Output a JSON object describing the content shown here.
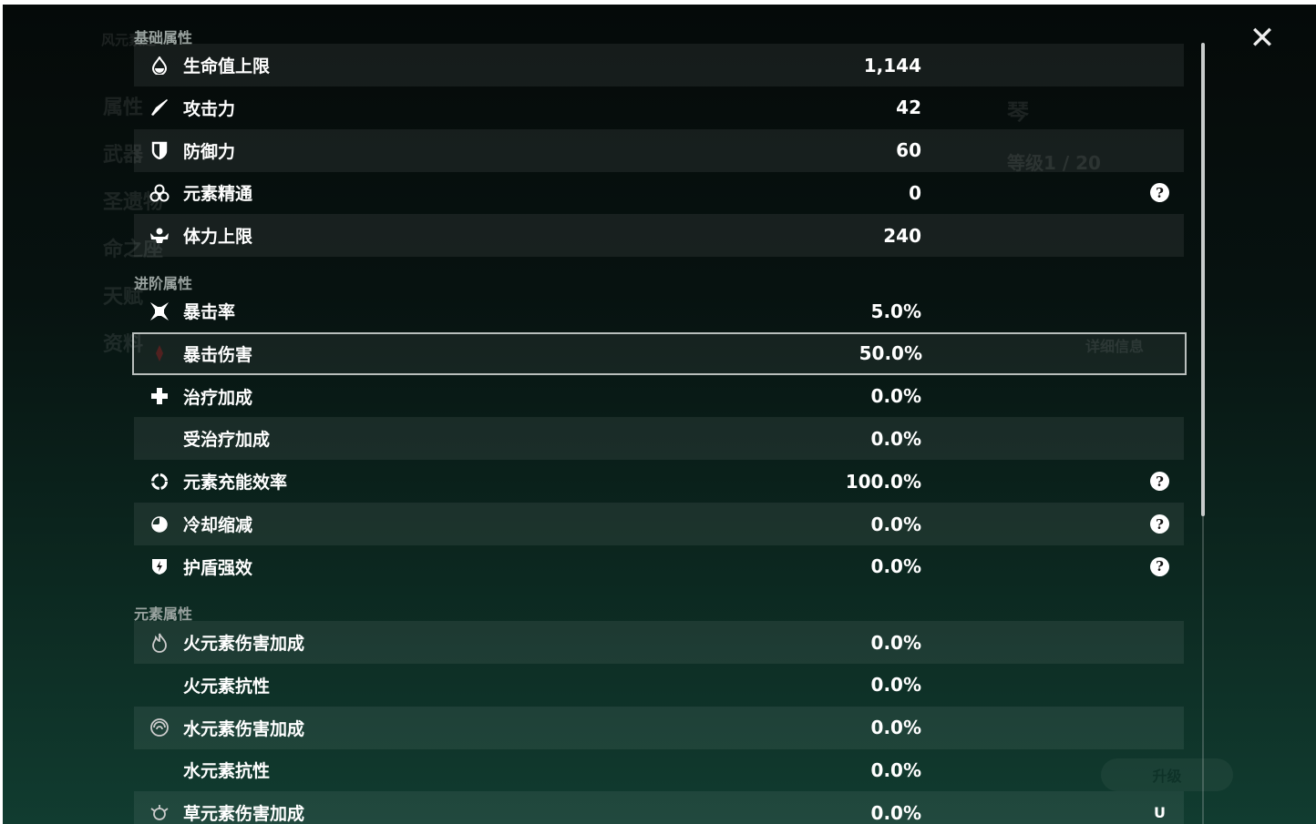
{
  "background": {
    "character_name": "琴",
    "level": "等级1 / 20",
    "detail_button": "详细信息",
    "upgrade_button": "升级",
    "element_title": "风元素之",
    "side_menu": [
      "属性",
      "武器",
      "圣遗物",
      "命之座",
      "天赋",
      "资料"
    ]
  },
  "sections": [
    {
      "title": "基础属性",
      "rows": [
        {
          "icon": "hp-drop-icon",
          "label": "生命值上限",
          "value": "1,144",
          "help": false
        },
        {
          "icon": "sword-icon",
          "label": "攻击力",
          "value": "42",
          "help": false
        },
        {
          "icon": "shield-icon",
          "label": "防御力",
          "value": "60",
          "help": false
        },
        {
          "icon": "elemental-mastery-icon",
          "label": "元素精通",
          "value": "0",
          "help": true
        },
        {
          "icon": "stamina-icon",
          "label": "体力上限",
          "value": "240",
          "help": false
        }
      ]
    },
    {
      "title": "进阶属性",
      "rows": [
        {
          "icon": "crit-rate-icon",
          "label": "暴击率",
          "value": "5.0%",
          "help": false
        },
        {
          "icon": "crit-dmg-icon",
          "label": "暴击伤害",
          "value": "50.0%",
          "help": false,
          "selected": true
        },
        {
          "icon": "healing-cross-icon",
          "label": "治疗加成",
          "value": "0.0%",
          "help": false
        },
        {
          "icon": "",
          "label": "受治疗加成",
          "value": "0.0%",
          "help": false
        },
        {
          "icon": "energy-recharge-icon",
          "label": "元素充能效率",
          "value": "100.0%",
          "help": true
        },
        {
          "icon": "cooldown-icon",
          "label": "冷却缩减",
          "value": "0.0%",
          "help": true
        },
        {
          "icon": "shield-strength-icon",
          "label": "护盾强效",
          "value": "0.0%",
          "help": true
        }
      ]
    },
    {
      "title": "元素属性",
      "rows": [
        {
          "icon": "pyro-icon",
          "label": "火元素伤害加成",
          "value": "0.0%",
          "help": false
        },
        {
          "icon": "",
          "label": "火元素抗性",
          "value": "0.0%",
          "help": false
        },
        {
          "icon": "hydro-icon",
          "label": "水元素伤害加成",
          "value": "0.0%",
          "help": false
        },
        {
          "icon": "",
          "label": "水元素抗性",
          "value": "0.0%",
          "help": false
        },
        {
          "icon": "dendro-icon",
          "label": "草元素伤害加成",
          "value": "0.0%",
          "help": false
        }
      ]
    }
  ],
  "help_glyph": "?",
  "close_glyph": "✕",
  "uid": "U"
}
